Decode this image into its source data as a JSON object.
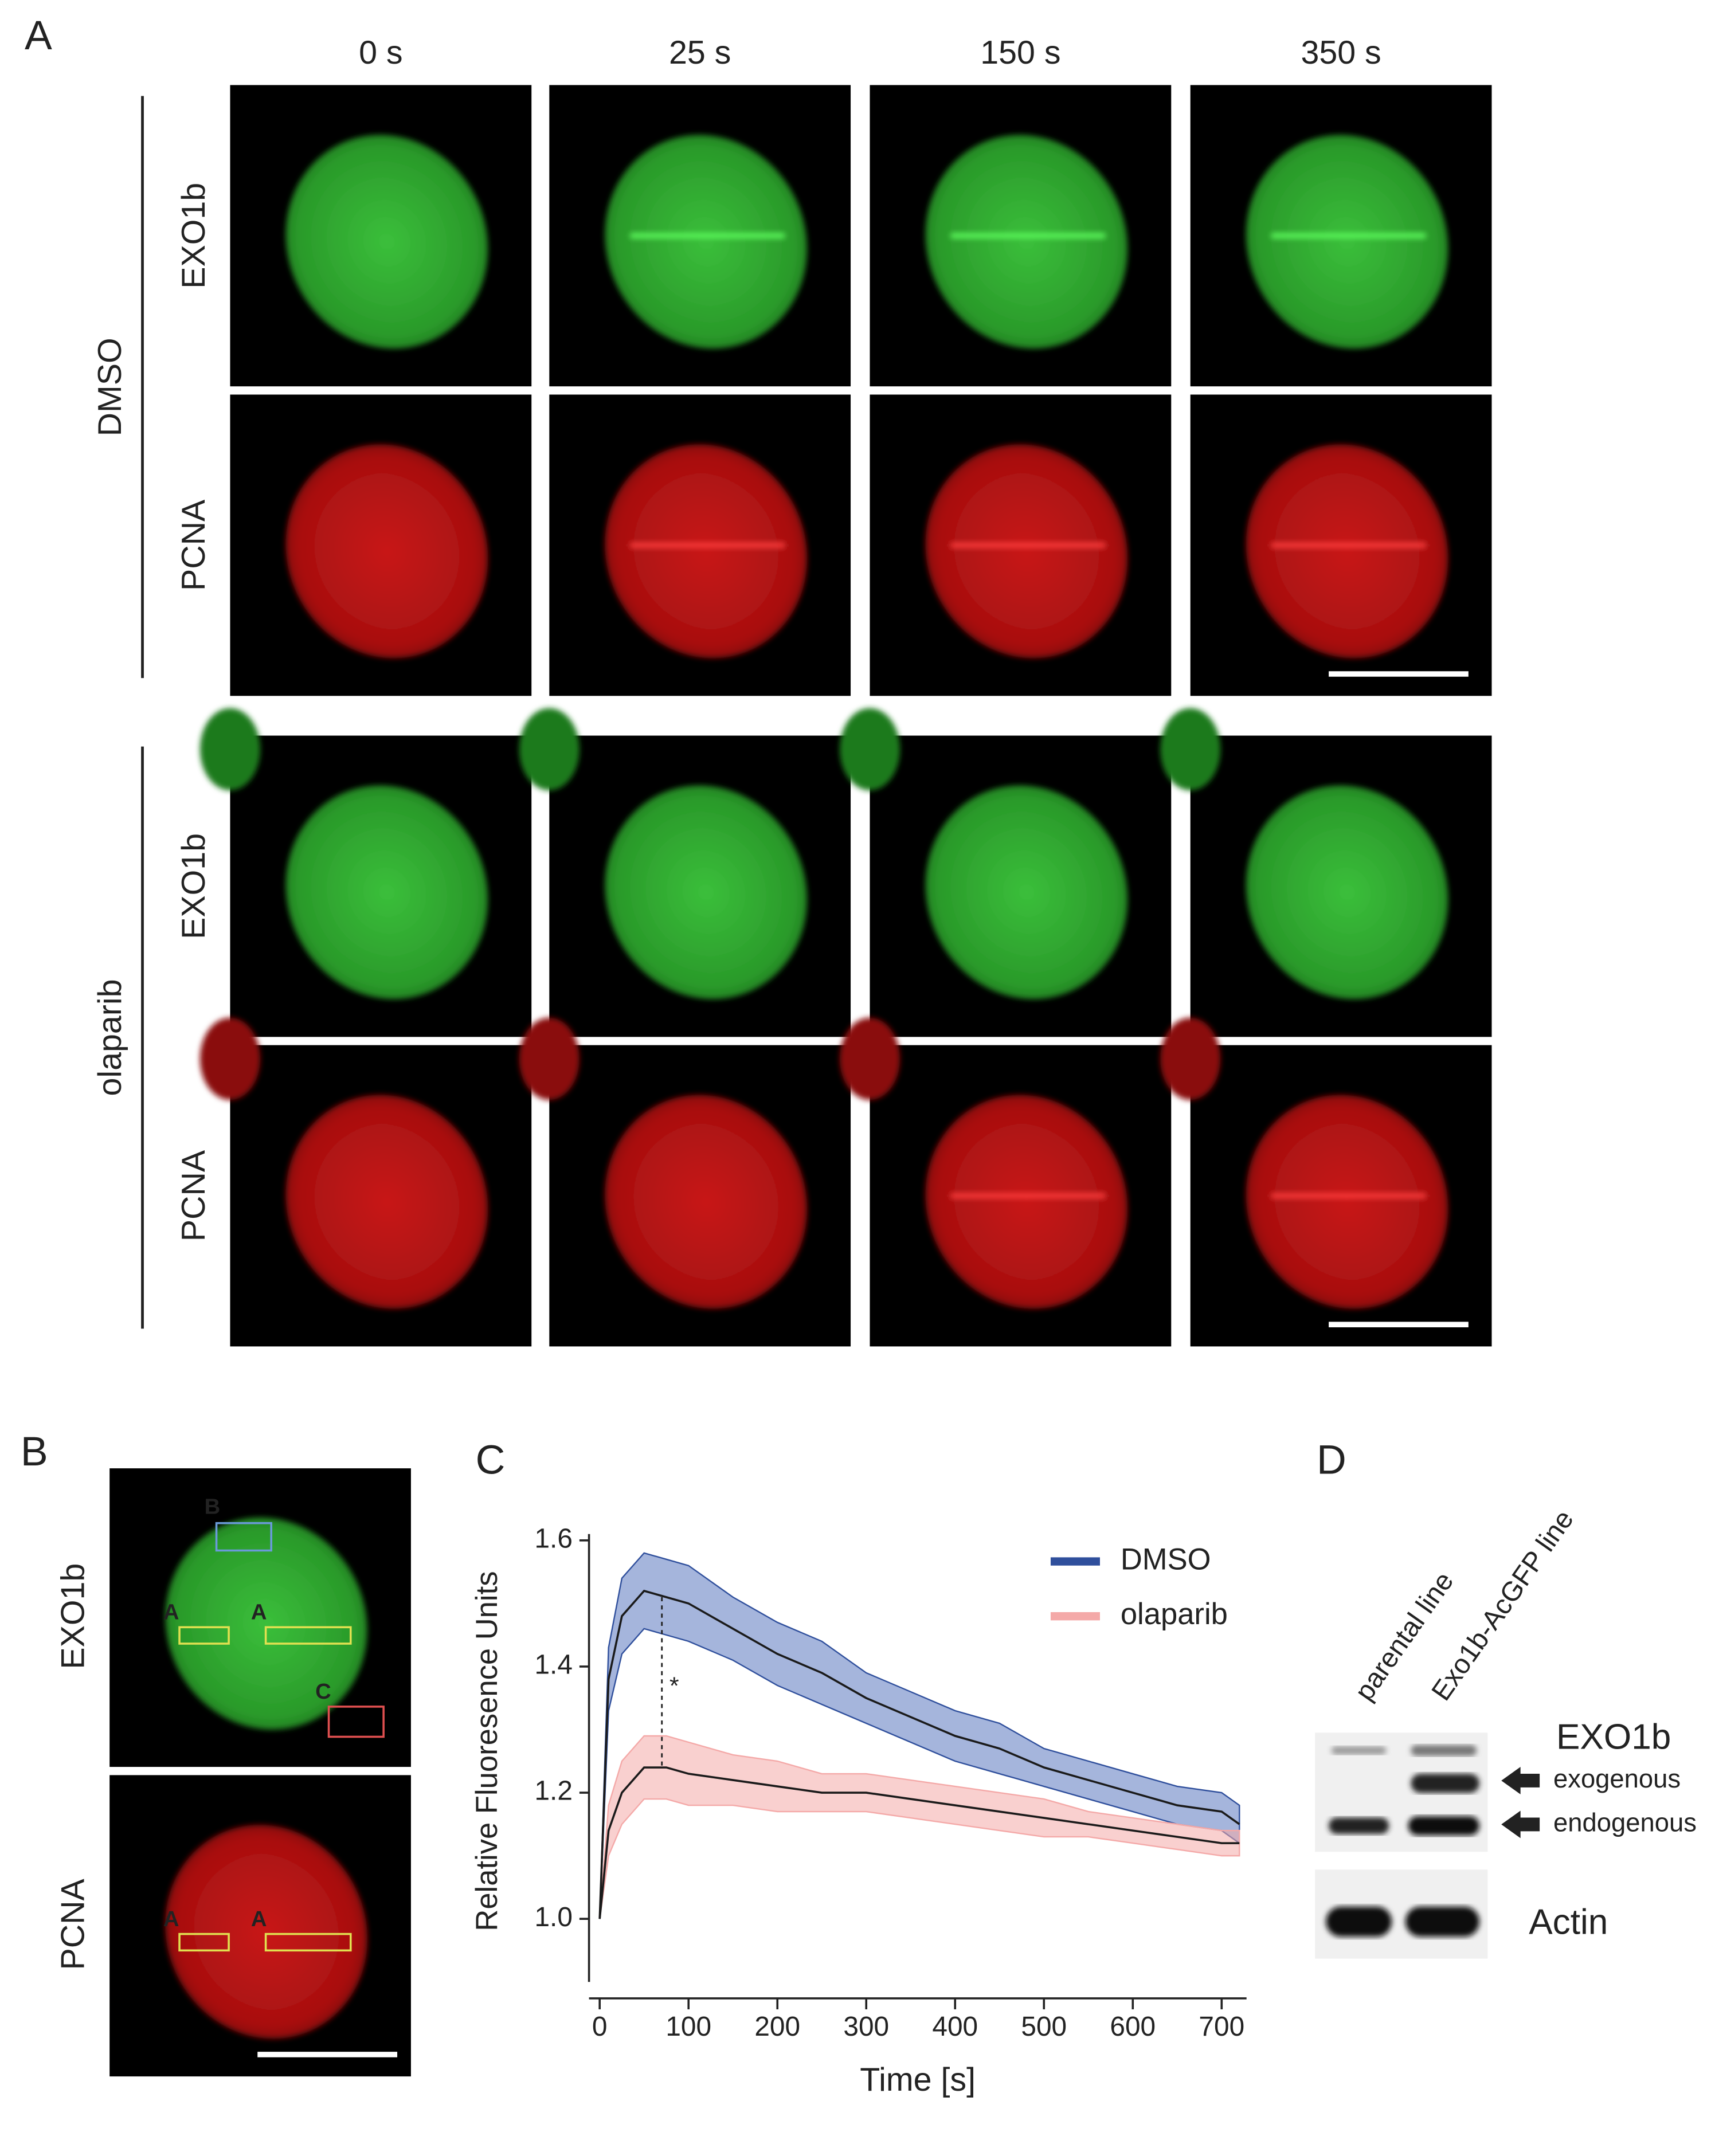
{
  "panel_a": {
    "letter": "A",
    "timepoints": [
      "0 s",
      "25 s",
      "150 s",
      "350 s"
    ],
    "conditions": [
      "DMSO",
      "olaparib"
    ],
    "channels": [
      "EXO1b",
      "PCNA"
    ]
  },
  "panel_b": {
    "letter": "B",
    "channels": [
      "EXO1b",
      "PCNA"
    ],
    "regions": {
      "a": "A",
      "b": "B",
      "c": "C"
    }
  },
  "chart_data": {
    "type": "line",
    "letter": "C",
    "x_label": "Time [s]",
    "y_label": "Relative Fluoresence Units",
    "x": [
      0,
      10,
      25,
      50,
      75,
      100,
      150,
      200,
      250,
      300,
      350,
      400,
      450,
      500,
      550,
      600,
      650,
      700,
      720
    ],
    "series": [
      {
        "name": "DMSO",
        "color": "#2f4f9c",
        "band_color": "#5b78c0",
        "values": [
          1.0,
          1.38,
          1.48,
          1.52,
          1.51,
          1.5,
          1.46,
          1.42,
          1.39,
          1.35,
          1.32,
          1.29,
          1.27,
          1.24,
          1.22,
          1.2,
          1.18,
          1.17,
          1.15
        ],
        "errors": [
          0.0,
          0.05,
          0.06,
          0.06,
          0.06,
          0.06,
          0.05,
          0.05,
          0.05,
          0.04,
          0.04,
          0.04,
          0.04,
          0.03,
          0.03,
          0.03,
          0.03,
          0.03,
          0.03
        ]
      },
      {
        "name": "olaparib",
        "color": "#f4a9a8",
        "band_color": "#f4a9a8",
        "values": [
          1.0,
          1.14,
          1.2,
          1.24,
          1.24,
          1.23,
          1.22,
          1.21,
          1.2,
          1.2,
          1.19,
          1.18,
          1.17,
          1.16,
          1.15,
          1.14,
          1.13,
          1.12,
          1.12
        ],
        "errors": [
          0.0,
          0.04,
          0.05,
          0.05,
          0.05,
          0.05,
          0.04,
          0.04,
          0.03,
          0.03,
          0.03,
          0.03,
          0.03,
          0.03,
          0.02,
          0.02,
          0.02,
          0.02,
          0.02
        ]
      }
    ],
    "mean_line_color": "#1a1a1a",
    "annotation": {
      "text": "*",
      "x": 70
    },
    "xlim": [
      -12,
      728
    ],
    "xticks": [
      0,
      100,
      200,
      300,
      400,
      500,
      600,
      700
    ],
    "ylim": [
      0.9,
      1.61
    ],
    "yticks": [
      {
        "value": 1.0,
        "label": "1.0"
      },
      {
        "value": 1.2,
        "label": "1.2"
      },
      {
        "value": 1.4,
        "label": "1.4"
      },
      {
        "value": 1.6,
        "label": "1.6"
      }
    ],
    "legend": "top-right"
  },
  "panel_d": {
    "letter": "D",
    "lanes": [
      "parental line",
      "Exo1b-AcGFP line"
    ],
    "protein": "EXO1b",
    "bands": [
      "exogenous",
      "endogenous"
    ],
    "loading_control": "Actin"
  }
}
